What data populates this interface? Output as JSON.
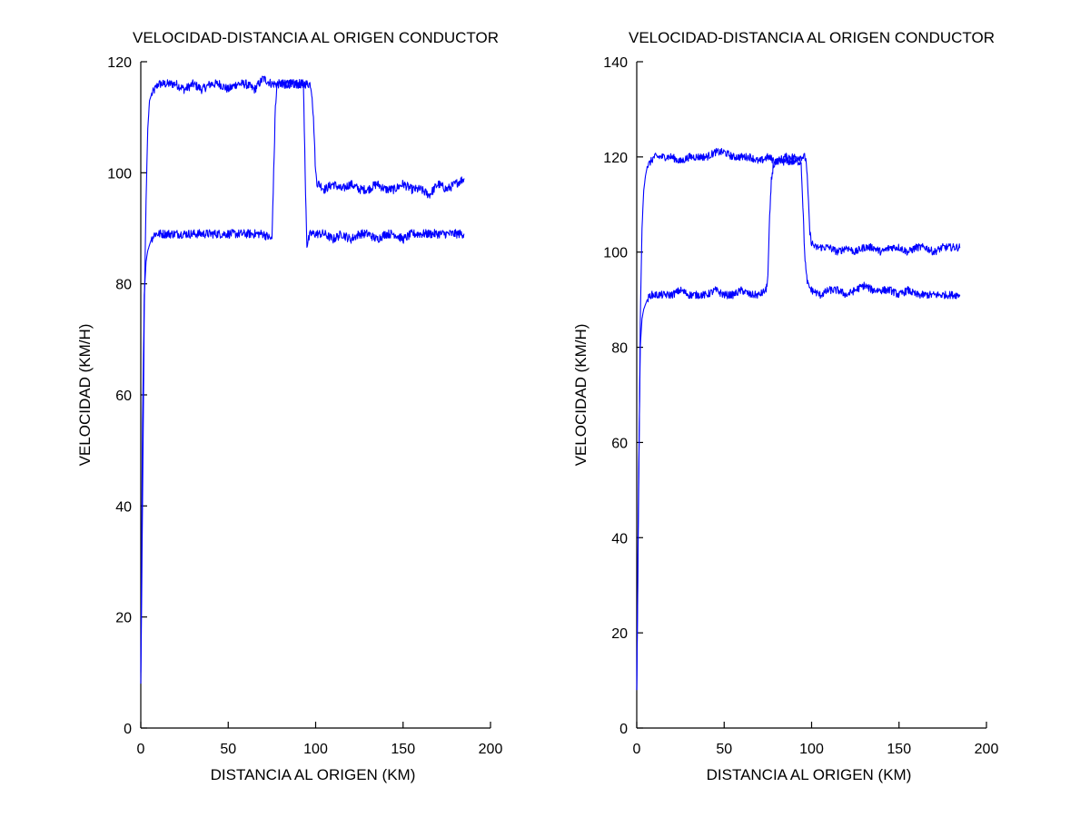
{
  "chart_data": [
    {
      "type": "line",
      "title": "VELOCIDAD-DISTANCIA AL ORIGEN CONDUCTOR",
      "xlabel": "DISTANCIA AL ORIGEN (KM)",
      "ylabel": "VELOCIDAD (KM/H)",
      "xlim": [
        0,
        200
      ],
      "ylim": [
        0,
        120
      ],
      "xticks": [
        0,
        50,
        100,
        150,
        200
      ],
      "yticks": [
        0,
        20,
        40,
        60,
        80,
        100,
        120
      ],
      "grid": false,
      "color": "#0000ff",
      "series": [
        {
          "x": [
            0,
            1,
            2,
            3,
            4,
            5,
            6,
            8,
            10,
            15,
            20,
            25,
            30,
            35,
            40,
            45,
            50,
            55,
            60,
            65,
            70,
            75,
            76,
            77,
            78,
            80,
            85,
            90,
            95,
            96,
            97,
            98,
            99,
            100,
            101,
            102,
            105,
            110,
            115,
            120,
            125,
            130,
            135,
            140,
            145,
            150,
            155,
            160,
            165,
            170,
            175,
            180,
            185
          ],
          "y": [
            8,
            40,
            75,
            95,
            108,
            113,
            114,
            115,
            116,
            116,
            116,
            115,
            116,
            115,
            116,
            116,
            115,
            116,
            116,
            115,
            117,
            116,
            116,
            116,
            116,
            116,
            116,
            116,
            116,
            116,
            116,
            114,
            108,
            100,
            98,
            98,
            97,
            98,
            97,
            98,
            97,
            97,
            98,
            97,
            97,
            98,
            97,
            97,
            96,
            98,
            97,
            98,
            99
          ]
        },
        {
          "x": [
            0,
            1,
            2,
            3,
            4,
            5,
            6,
            8,
            10,
            15,
            20,
            25,
            30,
            35,
            40,
            45,
            50,
            55,
            60,
            65,
            70,
            75,
            76,
            77,
            78,
            80,
            85,
            90,
            93,
            94,
            95,
            96,
            97,
            100,
            105,
            110,
            115,
            120,
            125,
            130,
            135,
            140,
            145,
            150,
            155,
            160,
            165,
            170,
            175,
            180,
            185
          ],
          "y": [
            10,
            55,
            78,
            84,
            86,
            87,
            88,
            89,
            89,
            89,
            89,
            89,
            89,
            89,
            89,
            89,
            89,
            89,
            89,
            89,
            89,
            88,
            100,
            112,
            116,
            116,
            116,
            116,
            116,
            100,
            87,
            88,
            89,
            89,
            89,
            88,
            89,
            88,
            89,
            89,
            88,
            89,
            89,
            88,
            89,
            89,
            89,
            89,
            89,
            89,
            89
          ]
        }
      ]
    },
    {
      "type": "line",
      "title": "VELOCIDAD-DISTANCIA AL ORIGEN CONDUCTOR",
      "xlabel": "DISTANCIA AL ORIGEN (KM)",
      "ylabel": "VELOCIDAD (KM/H)",
      "xlim": [
        0,
        200
      ],
      "ylim": [
        0,
        140
      ],
      "xticks": [
        0,
        50,
        100,
        150,
        200
      ],
      "yticks": [
        0,
        20,
        40,
        60,
        80,
        100,
        120,
        140
      ],
      "grid": false,
      "color": "#0000ff",
      "series": [
        {
          "x": [
            0,
            1,
            2,
            3,
            4,
            5,
            6,
            8,
            10,
            15,
            20,
            25,
            30,
            35,
            40,
            45,
            50,
            55,
            60,
            65,
            70,
            75,
            80,
            85,
            90,
            95,
            96,
            97,
            98,
            99,
            100,
            102,
            105,
            110,
            115,
            120,
            125,
            130,
            135,
            140,
            145,
            150,
            155,
            160,
            165,
            170,
            175,
            180,
            185
          ],
          "y": [
            8,
            45,
            85,
            105,
            113,
            116,
            118,
            119,
            120,
            120,
            120,
            119,
            120,
            120,
            120,
            121,
            121,
            120,
            120,
            120,
            119,
            120,
            119,
            120,
            120,
            120,
            120,
            119,
            112,
            104,
            102,
            101,
            101,
            101,
            100,
            101,
            100,
            101,
            101,
            100,
            101,
            101,
            100,
            101,
            101,
            100,
            101,
            101,
            101
          ]
        },
        {
          "x": [
            0,
            1,
            2,
            3,
            4,
            5,
            6,
            8,
            10,
            15,
            20,
            25,
            30,
            35,
            40,
            45,
            50,
            55,
            60,
            65,
            70,
            74,
            75,
            76,
            77,
            78,
            80,
            85,
            90,
            94,
            95,
            96,
            97,
            98,
            100,
            105,
            110,
            115,
            120,
            125,
            130,
            135,
            140,
            145,
            150,
            155,
            160,
            165,
            170,
            175,
            180,
            185
          ],
          "y": [
            8,
            50,
            80,
            86,
            88,
            89,
            90,
            91,
            91,
            91,
            91,
            92,
            91,
            91,
            91,
            92,
            91,
            91,
            92,
            91,
            91,
            92,
            95,
            107,
            115,
            118,
            119,
            119,
            119,
            119,
            110,
            100,
            95,
            93,
            92,
            91,
            92,
            92,
            91,
            92,
            93,
            92,
            92,
            92,
            91,
            92,
            91,
            91,
            91,
            91,
            91,
            91
          ]
        }
      ]
    }
  ]
}
